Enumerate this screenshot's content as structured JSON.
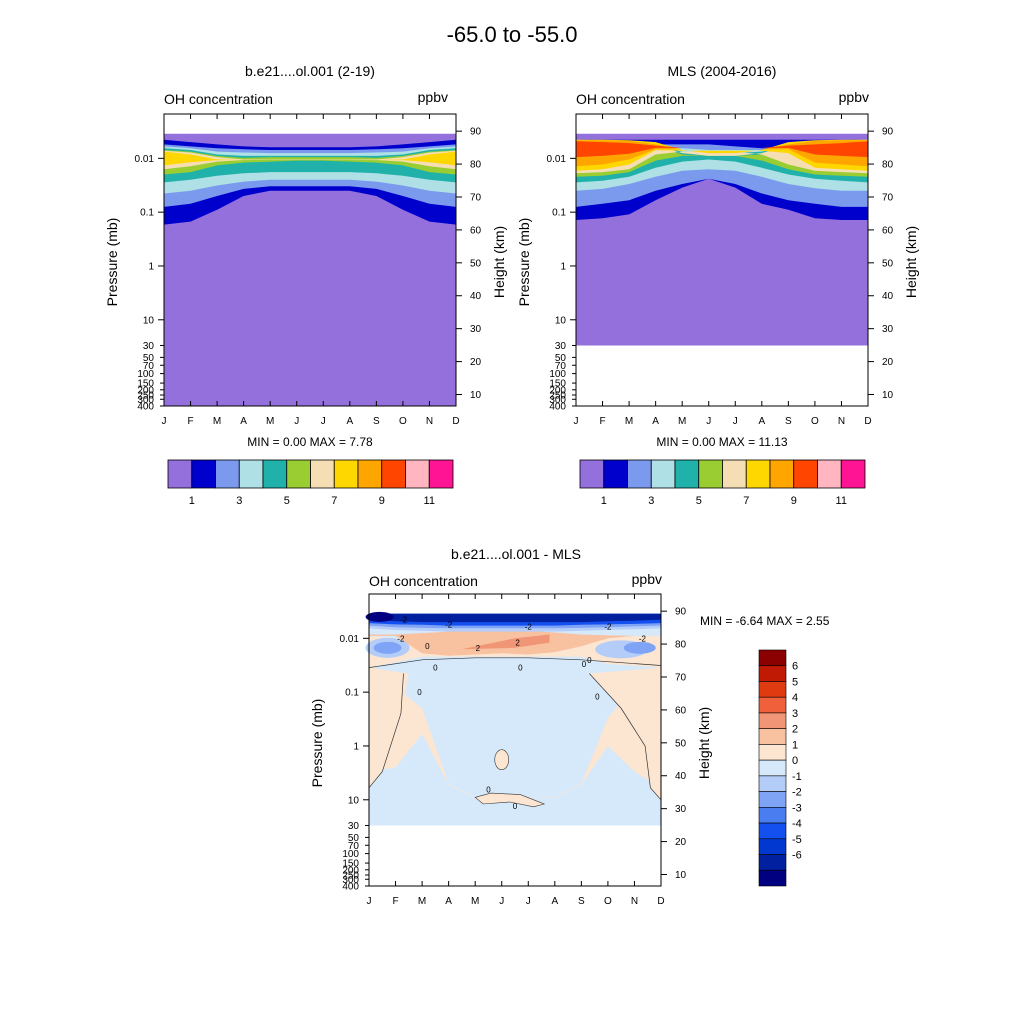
{
  "figure": {
    "title": "-65.0 to -55.0",
    "top_left": {
      "title": "b.e21....ol.001 (2-19)",
      "field": "OH concentration",
      "units": "ppbv",
      "ylabel": "Pressure (mb)",
      "y2label": "Height (km)",
      "stats": "MIN =   0.00  MAX =   7.78",
      "colorbar_labels": [
        "1",
        "3",
        "5",
        "7",
        "9",
        "11"
      ]
    },
    "top_right": {
      "title": "MLS (2004-2016)",
      "field": "OH concentration",
      "units": "ppbv",
      "ylabel": "Pressure (mb)",
      "y2label": "Height (km)",
      "stats": "MIN =   0.00  MAX =  11.13",
      "colorbar_labels": [
        "1",
        "3",
        "5",
        "7",
        "9",
        "11"
      ]
    },
    "bottom": {
      "title": "b.e21....ol.001 - MLS",
      "field": "OH concentration",
      "units": "ppbv",
      "ylabel": "Pressure (mb)",
      "y2label": "Height (km)",
      "stats": "MIN =  -6.64  MAX =   2.55",
      "colorbar_labels": [
        "6",
        "5",
        "4",
        "3",
        "2",
        "1",
        "0",
        "-1",
        "-2",
        "-3",
        "-4",
        "-5",
        "-6"
      ]
    }
  },
  "chart_data": [
    {
      "type": "heatmap",
      "title": "b.e21....ol.001 (2-19)",
      "xlabel": "",
      "ylabel": "Pressure (mb)",
      "y2label": "Height (km)",
      "x_tick_labels": [
        "J",
        "F",
        "M",
        "A",
        "M",
        "J",
        "J",
        "A",
        "S",
        "O",
        "N",
        "D"
      ],
      "y_tick_labels": [
        "0.01",
        "0.1",
        "1",
        "10",
        "30",
        "50",
        "70",
        "100",
        "150",
        "200",
        "250",
        "300",
        "400"
      ],
      "y_ticks_mb": [
        0.01,
        0.1,
        1,
        10,
        30,
        50,
        70,
        100,
        150,
        200,
        250,
        300,
        400
      ],
      "ylim_mb": [
        400,
        0.0015
      ],
      "y2_ticks_km": [
        10,
        20,
        30,
        40,
        50,
        60,
        70,
        80,
        90
      ],
      "y2_tick_labels": [
        "10",
        "20",
        "30",
        "40",
        "50",
        "60",
        "70",
        "80",
        "90"
      ],
      "contour_levels": [
        0,
        1,
        2,
        3,
        4,
        5,
        6,
        7,
        8,
        9,
        10,
        11,
        12
      ],
      "colors": [
        "#9370DB",
        "#0000CD",
        "#7B9AEE",
        "#AEE0E5",
        "#20B2AA",
        "#9ACD32",
        "#F5DEB3",
        "#FFD700",
        "#FFA500",
        "#FF4500",
        "#FFB6C1",
        "#FF1493"
      ],
      "min": 0.0,
      "max": 7.78,
      "units": "ppbv"
    },
    {
      "type": "heatmap",
      "title": "MLS (2004-2016)",
      "xlabel": "",
      "ylabel": "Pressure (mb)",
      "y2label": "Height (km)",
      "x_tick_labels": [
        "J",
        "F",
        "M",
        "A",
        "M",
        "J",
        "J",
        "A",
        "S",
        "O",
        "N",
        "D"
      ],
      "y_tick_labels": [
        "0.01",
        "0.1",
        "1",
        "10",
        "30",
        "50",
        "70",
        "100",
        "150",
        "200",
        "250",
        "300",
        "400"
      ],
      "y_ticks_mb": [
        0.01,
        0.1,
        1,
        10,
        30,
        50,
        70,
        100,
        150,
        200,
        250,
        300,
        400
      ],
      "ylim_mb": [
        400,
        0.0015
      ],
      "y2_ticks_km": [
        10,
        20,
        30,
        40,
        50,
        60,
        70,
        80,
        90
      ],
      "y2_tick_labels": [
        "10",
        "20",
        "30",
        "40",
        "50",
        "60",
        "70",
        "80",
        "90"
      ],
      "contour_levels": [
        0,
        1,
        2,
        3,
        4,
        5,
        6,
        7,
        8,
        9,
        10,
        11,
        12
      ],
      "colors": [
        "#9370DB",
        "#0000CD",
        "#7B9AEE",
        "#AEE0E5",
        "#20B2AA",
        "#9ACD32",
        "#F5DEB3",
        "#FFD700",
        "#FFA500",
        "#FF4500",
        "#FFB6C1",
        "#FF1493"
      ],
      "data_bottom_mb": 30,
      "min": 0.0,
      "max": 11.13,
      "units": "ppbv"
    },
    {
      "type": "heatmap",
      "title": "b.e21....ol.001 - MLS",
      "xlabel": "",
      "ylabel": "Pressure (mb)",
      "y2label": "Height (km)",
      "x_tick_labels": [
        "J",
        "F",
        "M",
        "A",
        "M",
        "J",
        "J",
        "A",
        "S",
        "O",
        "N",
        "D"
      ],
      "y_tick_labels": [
        "0.01",
        "0.1",
        "1",
        "10",
        "30",
        "50",
        "70",
        "100",
        "150",
        "200",
        "250",
        "300",
        "400"
      ],
      "y_ticks_mb": [
        0.01,
        0.1,
        1,
        10,
        30,
        50,
        70,
        100,
        150,
        200,
        250,
        300,
        400
      ],
      "ylim_mb": [
        400,
        0.0015
      ],
      "y2_ticks_km": [
        10,
        20,
        30,
        40,
        50,
        60,
        70,
        80,
        90
      ],
      "y2_tick_labels": [
        "10",
        "20",
        "30",
        "40",
        "50",
        "60",
        "70",
        "80",
        "90"
      ],
      "contour_labels": [
        "-2",
        "-2",
        "-2",
        "-2",
        "-2",
        "2",
        "2",
        "-2",
        "0",
        "0",
        "0",
        "0",
        "0",
        "0",
        "0",
        "0",
        "0"
      ],
      "contour_levels": [
        -7,
        -6,
        -5,
        -4,
        -3,
        -2,
        -1,
        0,
        1,
        2,
        3,
        4,
        5,
        6,
        7
      ],
      "colors": [
        "#000080",
        "#0020A0",
        "#0038D0",
        "#1450F0",
        "#4A7DF0",
        "#7FA4F5",
        "#B4CDF8",
        "#D6E9FB",
        "#FCE5D1",
        "#F8C1A0",
        "#F09575",
        "#F0603A",
        "#E03A10",
        "#C01A05",
        "#8B0000"
      ],
      "data_bottom_mb": 30,
      "min": -6.64,
      "max": 2.55,
      "units": "ppbv"
    }
  ]
}
